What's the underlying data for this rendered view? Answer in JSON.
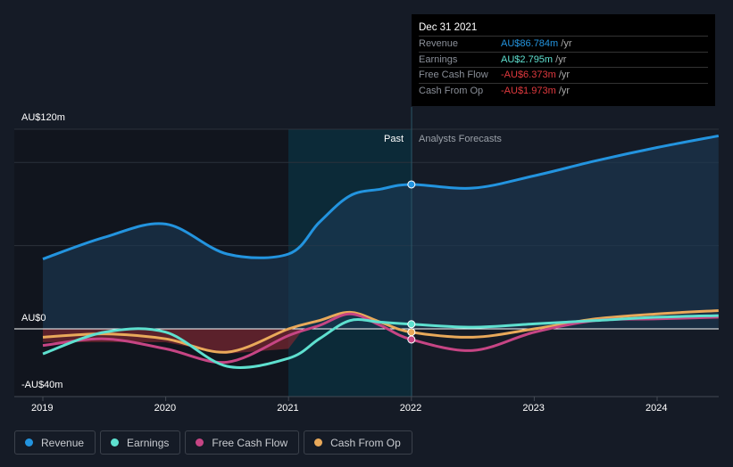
{
  "chart_data": {
    "type": "line",
    "title": "",
    "y_unit": "AU$",
    "yticks": [
      {
        "value": 120,
        "label": "AU$120m"
      },
      {
        "value": 0,
        "label": "AU$0"
      },
      {
        "value": -40,
        "label": "-AU$40m"
      }
    ],
    "ylim": [
      -40,
      120
    ],
    "xlim": [
      2018.8,
      2024.5
    ],
    "xticks": [
      "2019",
      "2020",
      "2021",
      "2022",
      "2023",
      "2024"
    ],
    "past_label": "Past",
    "forecast_label": "Analysts Forecasts",
    "x": [
      2019,
      2019.5,
      2020,
      2020.5,
      2021,
      2021.25,
      2021.5,
      2021.75,
      2022,
      2022.5,
      2023,
      2023.5,
      2024,
      2024.5
    ],
    "series": [
      {
        "name": "Revenue",
        "color": "#2394df",
        "values": [
          42,
          55,
          63,
          45,
          45,
          64,
          80,
          84,
          86.8,
          84.6,
          92,
          101,
          109,
          116
        ]
      },
      {
        "name": "Earnings",
        "color": "#5ee0cf",
        "values": [
          -15,
          -2,
          -2,
          -22.5,
          -17.7,
          -6,
          5,
          4,
          2.8,
          1,
          3,
          5,
          7,
          8
        ]
      },
      {
        "name": "Free Cash Flow",
        "color": "#c64584",
        "values": [
          -10,
          -6,
          -12,
          -20,
          -4,
          2,
          9,
          2,
          -6.4,
          -13,
          -2,
          5,
          6,
          7
        ]
      },
      {
        "name": "Cash From Op",
        "color": "#e9a95a",
        "values": [
          -5,
          -3,
          -6,
          -14,
          0,
          5,
          10,
          4,
          -2,
          -5,
          0,
          6,
          9,
          11
        ]
      }
    ]
  },
  "tooltip": {
    "date": "Dec 31 2021",
    "rows": [
      {
        "label": "Revenue",
        "value": "AU$86.784m",
        "unit": "/yr",
        "color": "#2394df"
      },
      {
        "label": "Earnings",
        "value": "AU$2.795m",
        "unit": "/yr",
        "color": "#5ee0cf"
      },
      {
        "label": "Free Cash Flow",
        "value": "-AU$6.373m",
        "unit": "/yr",
        "color": "#e0393e"
      },
      {
        "label": "Cash From Op",
        "value": "-AU$1.973m",
        "unit": "/yr",
        "color": "#e0393e"
      }
    ]
  }
}
